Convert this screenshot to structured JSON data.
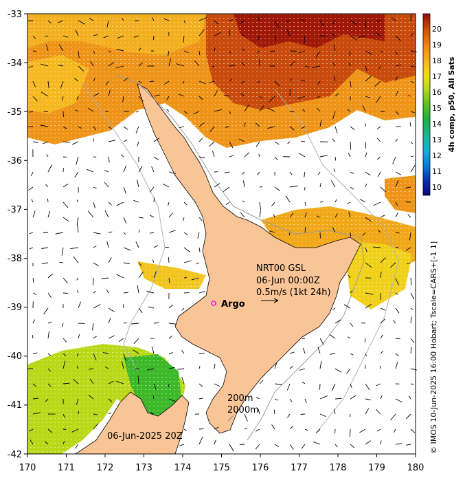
{
  "map": {
    "lon_ticks": [
      "170",
      "171",
      "172",
      "173",
      "174",
      "175",
      "176",
      "177",
      "178",
      "179",
      "180"
    ],
    "lat_ticks": [
      "-33",
      "-34",
      "-35",
      "-36",
      "-37",
      "-38",
      "-39",
      "-40",
      "-41",
      "-42"
    ],
    "lon_range": [
      170,
      180
    ],
    "lat_range": [
      -42,
      -33
    ]
  },
  "colorbar": {
    "label": "4h comp, p50, All Sats",
    "ticks": [
      "20",
      "19",
      "18",
      "17",
      "16",
      "15",
      "14",
      "13",
      "12",
      "11",
      "10"
    ],
    "range": [
      9.5,
      21
    ],
    "colors": [
      "#08087a",
      "#0a2fb0",
      "#0a7ad6",
      "#12b4d8",
      "#16b890",
      "#1fb042",
      "#5cc21a",
      "#b0d81a",
      "#f0e010",
      "#f5b418",
      "#ee8a10",
      "#d4580c",
      "#b02a08",
      "#8a0c06"
    ]
  },
  "annotations": {
    "station": "NRT00 GSL",
    "datetime": "06-Jun 00:00Z",
    "scale": "0.5m/s (1kt 24h)",
    "argo": "Argo",
    "contour1": "200m",
    "contour2": "2000m",
    "date_stamp": "06-Jun-2025 20Z"
  },
  "credit": "© IMOS 10-Jun-2025 16:00 Hobart; Tscale=CARS+[-1 1]"
}
